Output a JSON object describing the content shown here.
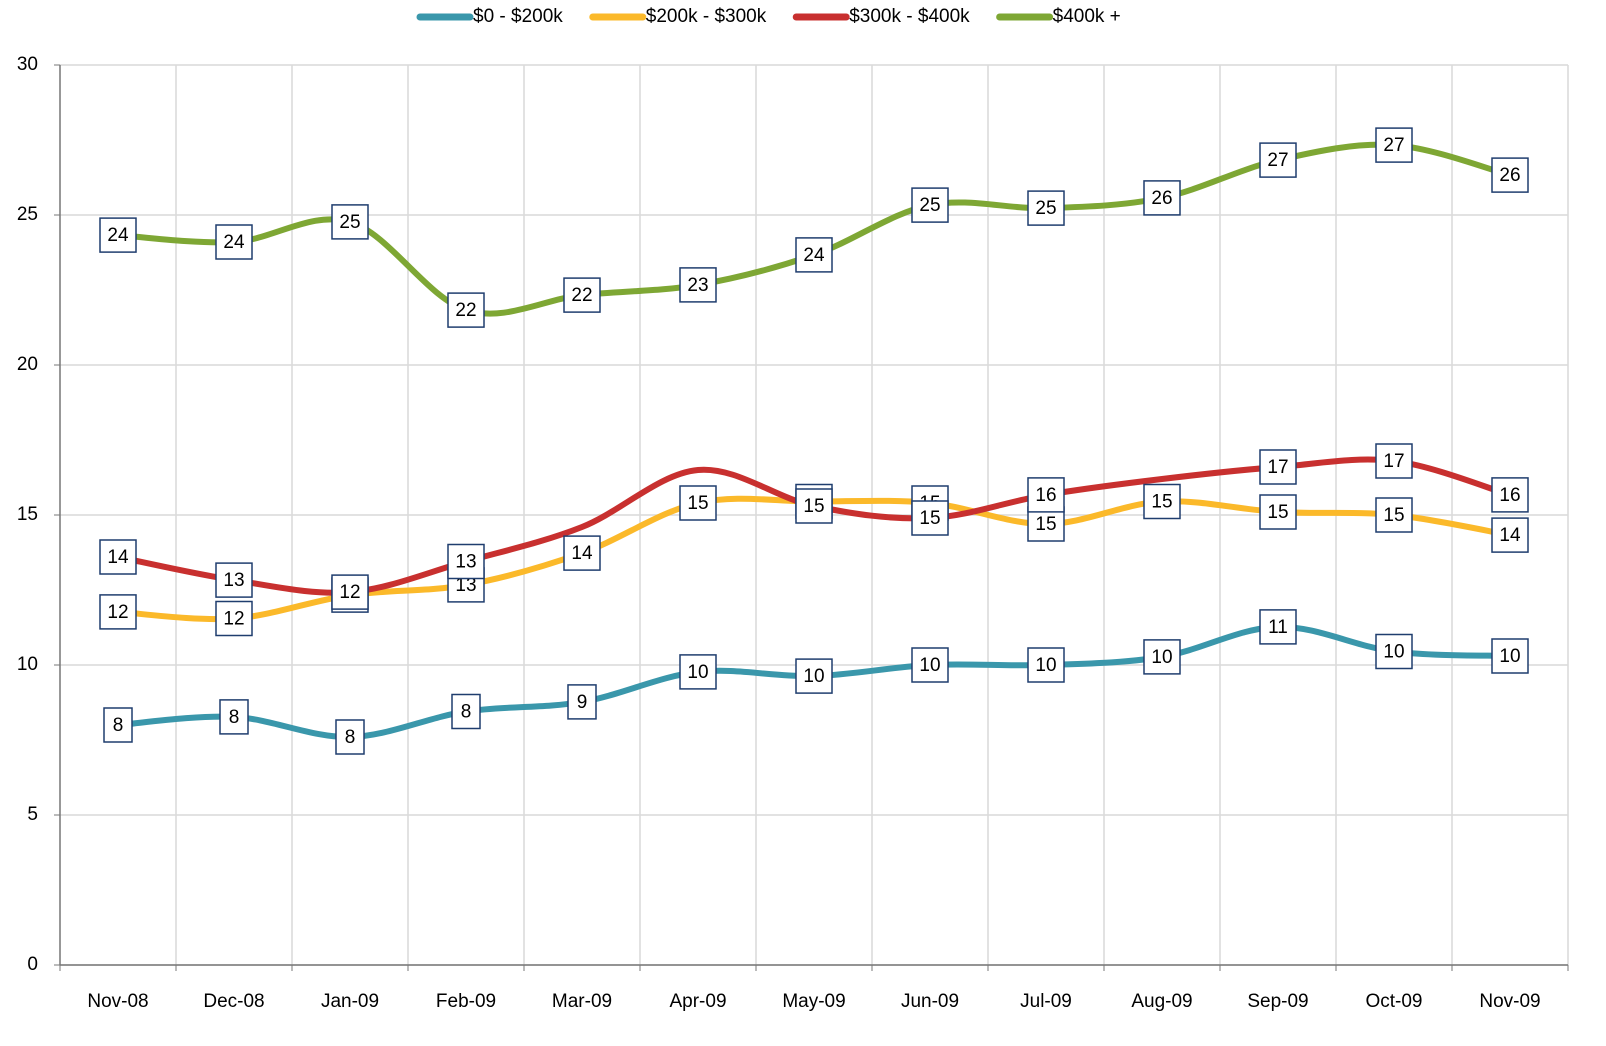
{
  "chart_data": {
    "type": "line",
    "categories": [
      "Nov-08",
      "Dec-08",
      "Jan-09",
      "Feb-09",
      "Mar-09",
      "Apr-09",
      "May-09",
      "Jun-09",
      "Jul-09",
      "Aug-09",
      "Sep-09",
      "Oct-09",
      "Nov-09"
    ],
    "series": [
      {
        "name": "$0 - $200k",
        "color": "#3a97ab",
        "values": [
          8.0,
          8.27,
          7.6,
          8.45,
          8.77,
          9.77,
          9.63,
          10.0,
          10.0,
          10.27,
          11.27,
          10.45,
          10.3
        ],
        "value_labels": [
          "8",
          "8",
          "8",
          "8",
          "9",
          "10",
          "10",
          "10",
          "10",
          "10",
          "11",
          "10",
          "10"
        ]
      },
      {
        "name": "$200k - $300k",
        "color": "#fbb92a",
        "values": [
          11.77,
          11.55,
          12.33,
          12.67,
          13.73,
          15.4,
          15.45,
          15.4,
          14.7,
          15.45,
          15.1,
          15.0,
          14.33
        ],
        "value_labels": [
          "12",
          "12",
          "12",
          "13",
          "14",
          "15",
          "15",
          "15",
          "15",
          "15",
          "15",
          "15",
          "14"
        ]
      },
      {
        "name": "$300k - $400k",
        "color": "#c8302f",
        "values": [
          13.6,
          12.83,
          12.43,
          13.45,
          14.6,
          16.5,
          15.3,
          14.9,
          15.67,
          16.2,
          16.6,
          16.8,
          15.67
        ],
        "value_labels": [
          "14",
          "13",
          "12",
          "13",
          null,
          null,
          "15",
          "15",
          "16",
          null,
          "17",
          "17",
          "16"
        ]
      },
      {
        "name": "$400k +",
        "color": "#7ea734",
        "values": [
          24.33,
          24.1,
          24.77,
          21.83,
          22.33,
          22.67,
          23.67,
          25.33,
          25.23,
          25.57,
          26.83,
          27.33,
          26.33
        ],
        "value_labels": [
          "24",
          "24",
          "25",
          "22",
          "22",
          "23",
          "24",
          "25",
          "25",
          "26",
          "27",
          "27",
          "26"
        ]
      }
    ],
    "ylim": [
      0,
      30
    ],
    "yticks": [
      0,
      5,
      10,
      15,
      20,
      25,
      30
    ],
    "grid": true,
    "legend": "top"
  }
}
